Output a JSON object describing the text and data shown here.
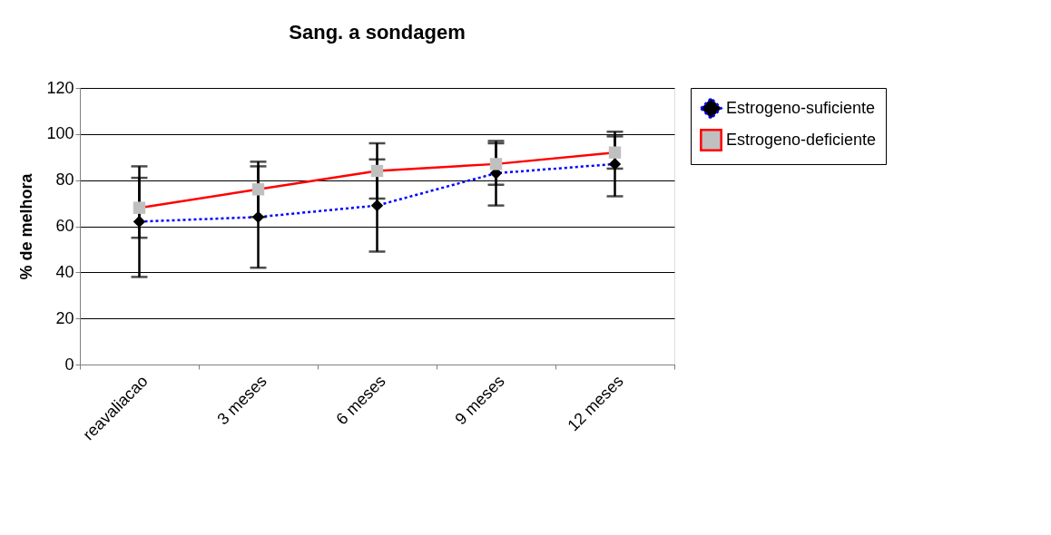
{
  "chart_data": {
    "type": "line",
    "title": "Sang. a sondagem",
    "ylabel": "% de melhora",
    "categories": [
      "reavaliacao",
      "3 meses",
      "6 meses",
      "9 meses",
      "12 meses"
    ],
    "series": [
      {
        "name": "Estrogeno-suficiente",
        "color": "#0000ff",
        "line_style": "dotted",
        "marker": "diamond",
        "values": [
          62,
          64,
          69,
          83,
          87
        ],
        "errors": [
          24,
          22,
          20,
          14,
          14
        ]
      },
      {
        "name": "Estrogeno-deficiente",
        "color": "#ff0000",
        "line_style": "solid",
        "marker": "square",
        "values": [
          68,
          76,
          84,
          87,
          92
        ],
        "errors": [
          13,
          12,
          12,
          9,
          7
        ]
      }
    ],
    "ylim": [
      0,
      120
    ],
    "yticks": [
      0,
      20,
      40,
      60,
      80,
      100,
      120
    ],
    "grid": "y",
    "legend": "right"
  }
}
